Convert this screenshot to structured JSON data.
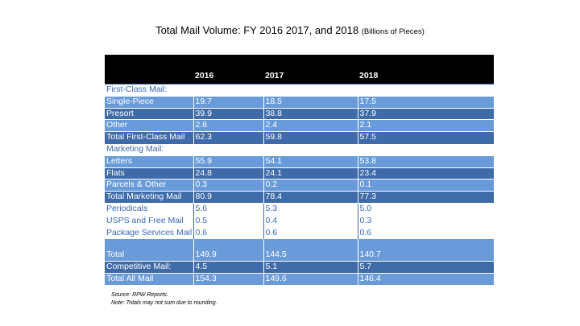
{
  "title": {
    "main": "Total Mail Volume: FY 2016 2017, and 2018",
    "unit": "(Billions of Pieces)"
  },
  "table": {
    "headers": [
      "",
      "2016",
      "2017",
      "2018"
    ],
    "rows": [
      {
        "style": "section",
        "cells": [
          "First-Class Mail:",
          "",
          "",
          ""
        ]
      },
      {
        "style": "light",
        "cells": [
          "Single-Piece",
          "19.7",
          "18.5",
          "17.5"
        ]
      },
      {
        "style": "dark",
        "cells": [
          "Presort",
          "39.9",
          "38.8",
          "37.9"
        ]
      },
      {
        "style": "light",
        "cells": [
          "Other",
          "2.6",
          "2.4",
          "2.1"
        ]
      },
      {
        "style": "dark",
        "cells": [
          "Total First-Class Mail",
          "62.3",
          "59.8",
          "57.5"
        ]
      },
      {
        "style": "section",
        "cells": [
          "Marketing Mail:",
          "",
          "",
          ""
        ]
      },
      {
        "style": "light",
        "cells": [
          "Letters",
          "55.9",
          "54.1",
          "53.8"
        ]
      },
      {
        "style": "dark",
        "cells": [
          "Flats",
          "24.8",
          "24.1",
          "23.4"
        ]
      },
      {
        "style": "light",
        "cells": [
          "Parcels & Other",
          "0.3",
          "0.2",
          "0.1"
        ]
      },
      {
        "style": "dark",
        "cells": [
          "Total Marketing Mail",
          "80.9",
          "78.4",
          "77.3"
        ]
      },
      {
        "style": "plain",
        "cells": [
          "Periodicals",
          "5.6",
          "5.3",
          "5.0"
        ]
      },
      {
        "style": "plain",
        "cells": [
          "USPS and Free Mail",
          "0.5",
          "0.4",
          "0.3"
        ]
      },
      {
        "style": "plain",
        "cells": [
          "Package Services Mail",
          "0.6",
          "0.6",
          "0.6"
        ]
      },
      {
        "style": "light tall",
        "cells": [
          "Total",
          "149.9",
          "144.5",
          "140.7"
        ]
      },
      {
        "style": "dark",
        "cells": [
          "Competitive Mail:",
          "4.5",
          "5.1",
          "5.7"
        ]
      },
      {
        "style": "light",
        "cells": [
          "Total All Mail",
          "154.3",
          "149.6",
          "146.4"
        ]
      }
    ]
  },
  "notes": {
    "source": "Source: RPW Reports.",
    "rounding": "Note: Totals may not sum due to rounding."
  },
  "colors": {
    "header_bg": "#000000",
    "row_light": "#6a9bd9",
    "row_dark": "#3f6ba8",
    "section_text": "#3a68b4"
  }
}
